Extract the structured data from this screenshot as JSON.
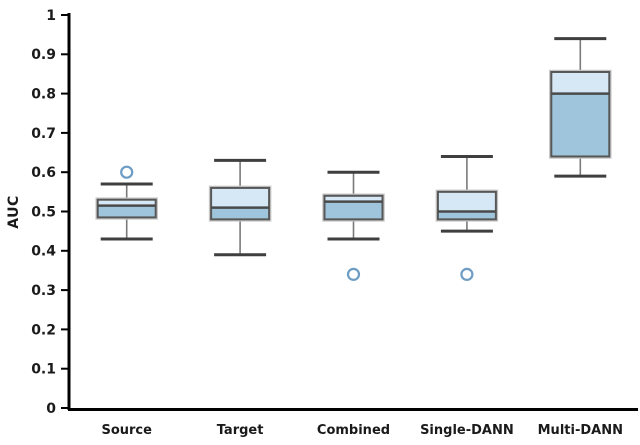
{
  "chart_data": {
    "type": "box",
    "title": "",
    "xlabel": "",
    "ylabel": "AUC",
    "ylim": [
      0,
      1
    ],
    "grid": false,
    "legend": "none",
    "y_ticks": [
      0,
      0.1,
      0.2,
      0.3,
      0.4,
      0.5,
      0.6,
      0.7,
      0.8,
      0.9,
      1
    ],
    "y_tick_labels": [
      "0",
      "0.1",
      "0.2",
      "0.3",
      "0.4",
      "0.5",
      "0.6",
      "0.7",
      "0.8",
      "0.9",
      "1"
    ],
    "categories": [
      "Source",
      "Target",
      "Combined",
      "Single-DANN",
      "Multi-DANN"
    ],
    "series": [
      {
        "name": "Source",
        "whisker_low": 0.43,
        "q1": 0.485,
        "median": 0.515,
        "q3": 0.53,
        "whisker_high": 0.57,
        "outliers": [
          0.6
        ]
      },
      {
        "name": "Target",
        "whisker_low": 0.39,
        "q1": 0.48,
        "median": 0.51,
        "q3": 0.56,
        "whisker_high": 0.63,
        "outliers": []
      },
      {
        "name": "Combined",
        "whisker_low": 0.43,
        "q1": 0.48,
        "median": 0.525,
        "q3": 0.54,
        "whisker_high": 0.6,
        "outliers": [
          0.34
        ]
      },
      {
        "name": "Single-DANN",
        "whisker_low": 0.45,
        "q1": 0.48,
        "median": 0.5,
        "q3": 0.55,
        "whisker_high": 0.64,
        "outliers": [
          0.34
        ]
      },
      {
        "name": "Multi-DANN",
        "whisker_low": 0.59,
        "q1": 0.64,
        "median": 0.8,
        "q3": 0.855,
        "whisker_high": 0.94,
        "outliers": []
      }
    ],
    "colors": {
      "box_upper_fill": "#d6e8f5",
      "box_lower_fill": "#9fc5dc",
      "box_border": "#575757",
      "box_halo": "#c6c6c6",
      "median_line": "#4a4a4a",
      "whisker_line": "#7a7a7a",
      "whisker_cap": "#3f3f3f",
      "outlier_stroke": "#6d9cc4",
      "axis": "#000000",
      "text": "#1a1a1a",
      "background": "#ffffff"
    }
  }
}
